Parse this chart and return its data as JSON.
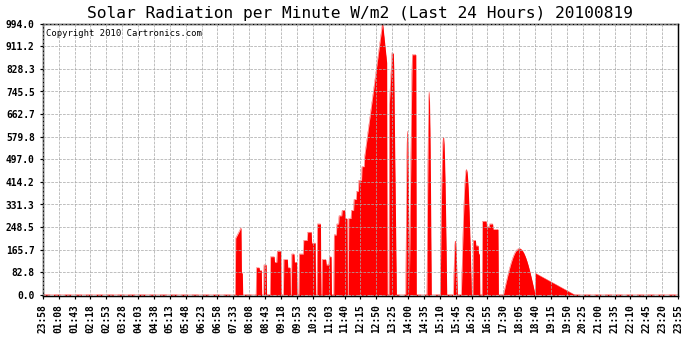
{
  "title": "Solar Radiation per Minute W/m2 (Last 24 Hours) 20100819",
  "copyright_text": "Copyright 2010 Cartronics.com",
  "background_color": "#ffffff",
  "plot_bg_color": "#ffffff",
  "fill_color": "#ff0000",
  "line_color": "#ff0000",
  "dashed_line_color": "#ff0000",
  "grid_color": "#aaaaaa",
  "yticks": [
    0.0,
    82.8,
    165.7,
    248.5,
    331.3,
    414.2,
    497.0,
    579.8,
    662.7,
    745.5,
    828.3,
    911.2,
    994.0
  ],
  "ymax": 994.0,
  "ymin": 0.0,
  "title_fontsize": 11,
  "tick_label_fontsize": 6.5,
  "x_tick_labels": [
    "23:58",
    "01:08",
    "01:43",
    "02:18",
    "02:53",
    "03:28",
    "04:03",
    "04:38",
    "05:13",
    "05:48",
    "06:23",
    "06:58",
    "07:33",
    "08:08",
    "08:43",
    "09:18",
    "09:53",
    "10:28",
    "11:03",
    "11:40",
    "12:15",
    "12:50",
    "13:25",
    "14:00",
    "14:35",
    "15:10",
    "15:45",
    "16:20",
    "16:55",
    "17:30",
    "18:05",
    "18:40",
    "19:15",
    "19:50",
    "20:25",
    "21:00",
    "21:35",
    "22:10",
    "22:45",
    "23:20",
    "23:55"
  ]
}
